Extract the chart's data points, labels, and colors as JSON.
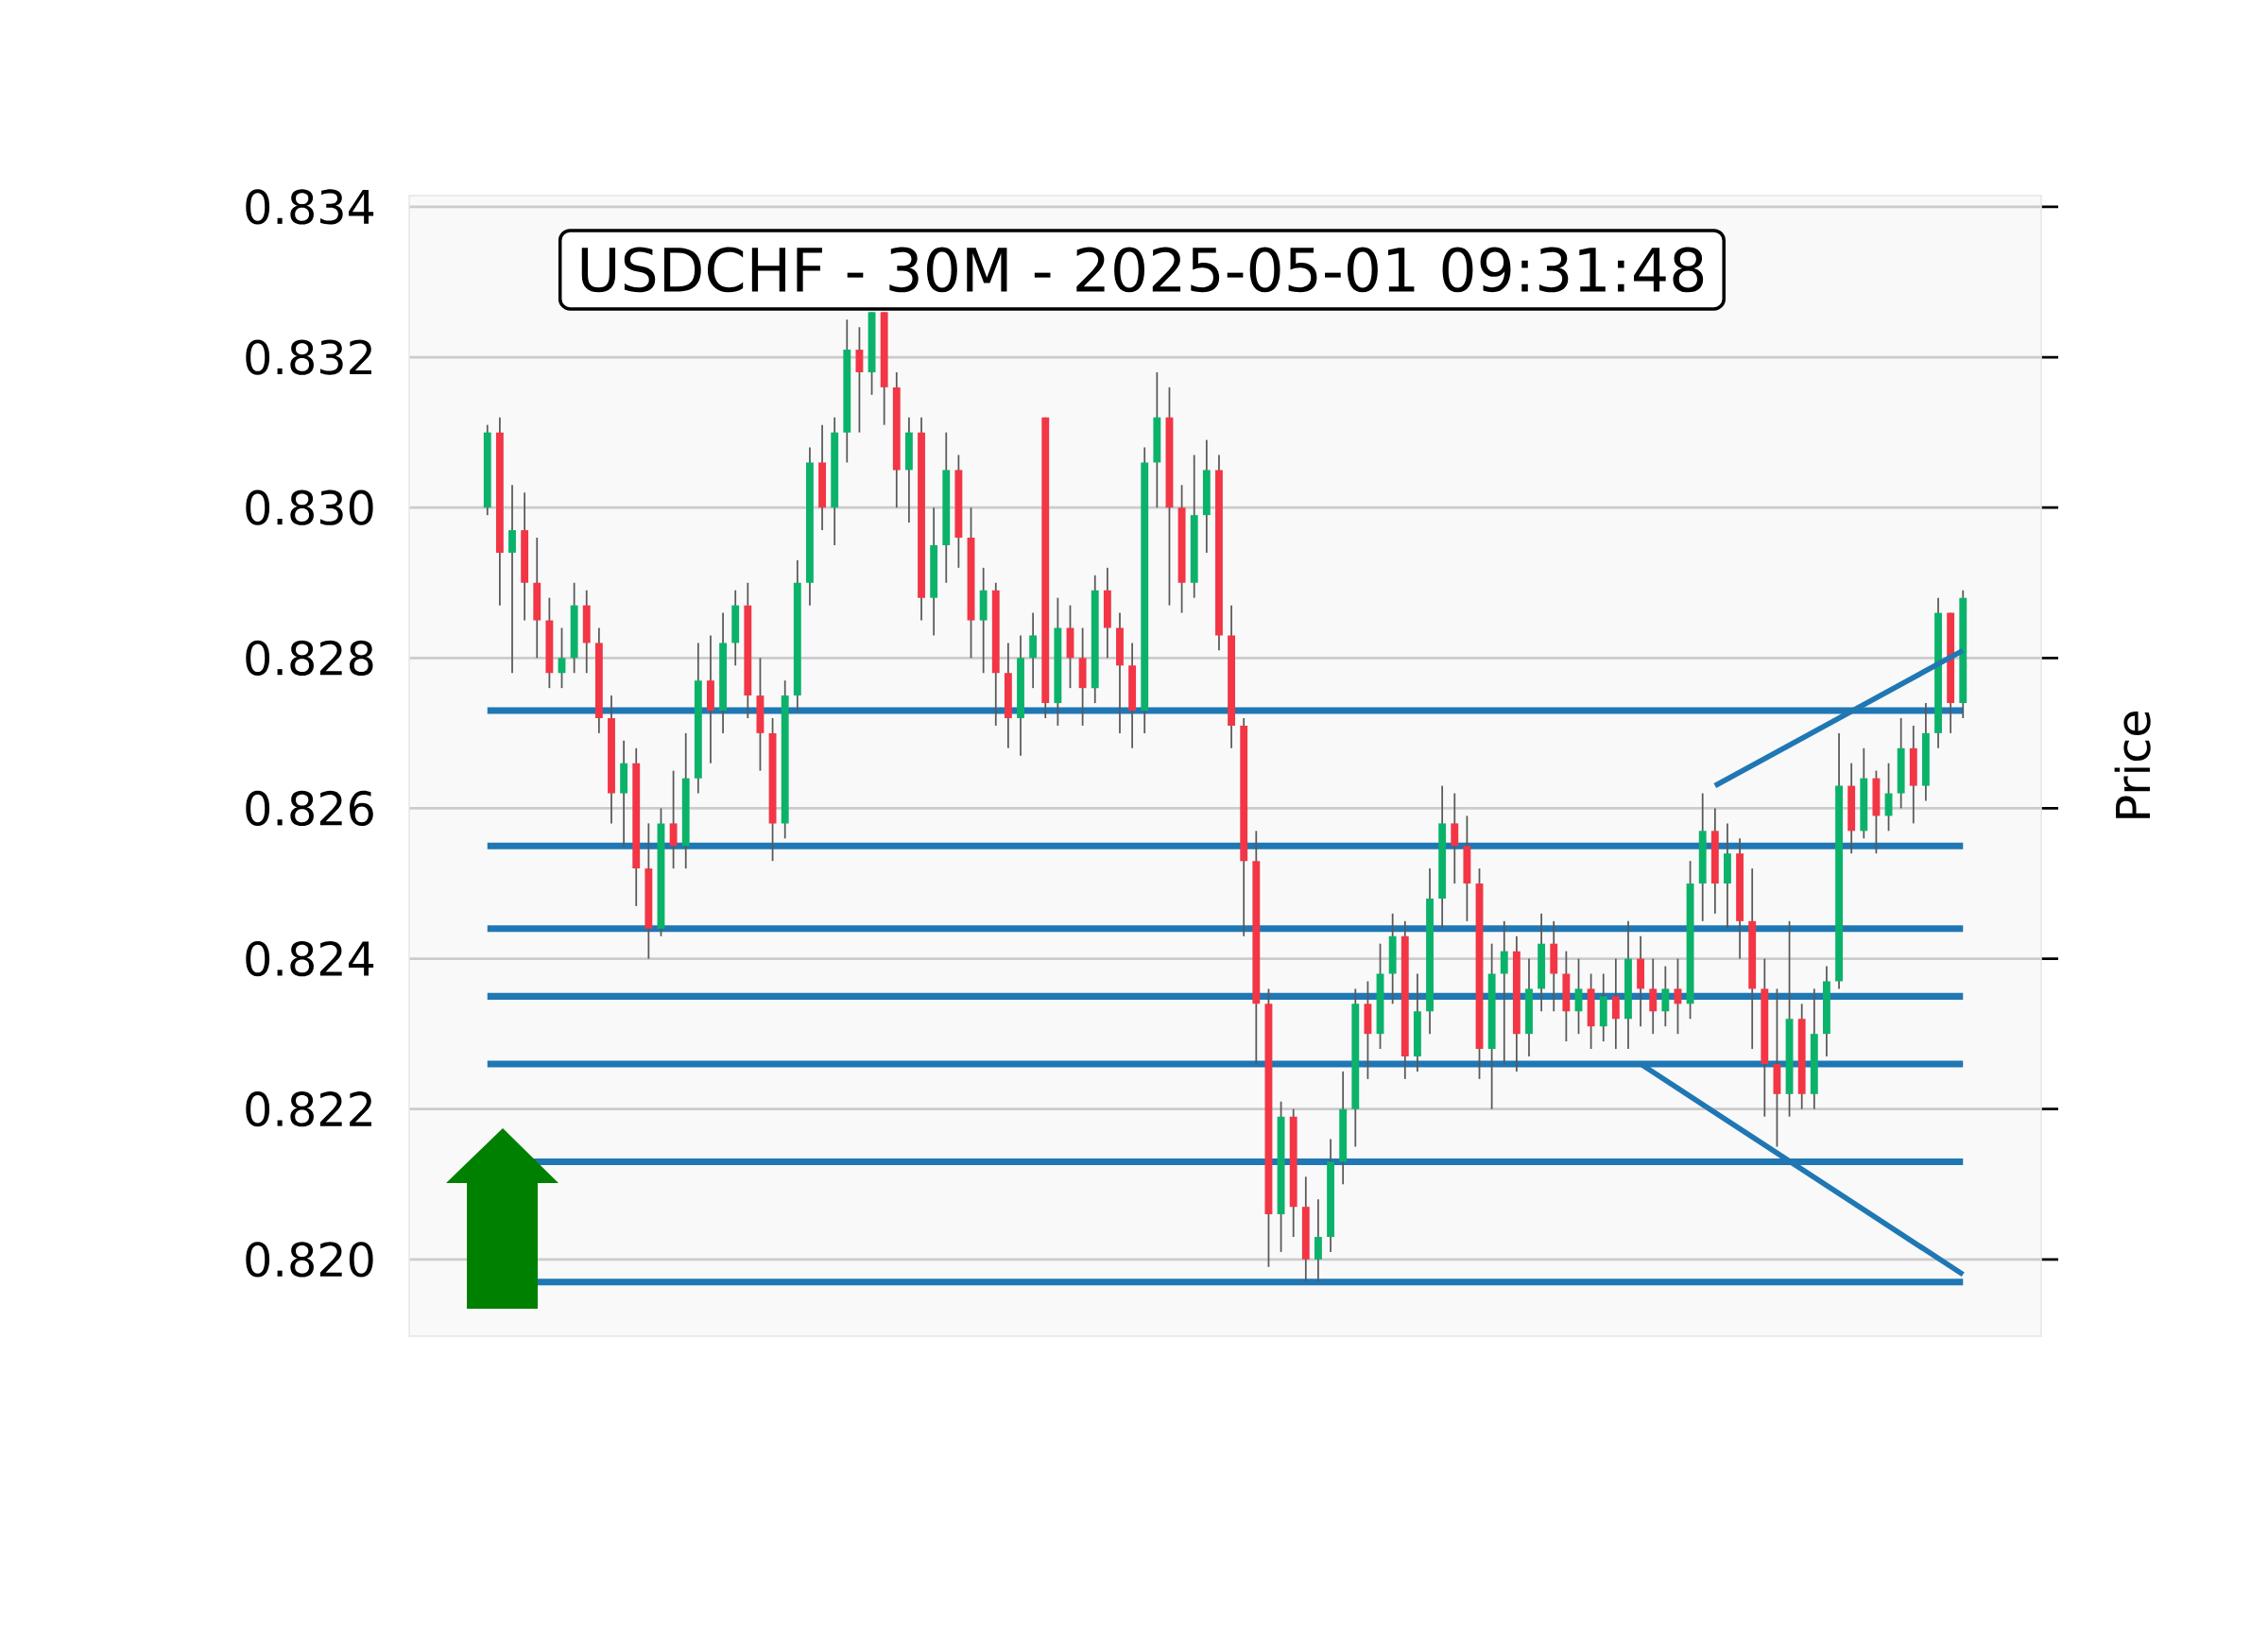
{
  "chart_data": {
    "type": "candlestick",
    "title": "USDCHF - 30M - 2025-05-01 09:31:48",
    "ylabel": "Price",
    "categories": [
      null,
      null,
      null,
      null,
      null,
      null,
      null,
      null,
      null,
      null,
      null,
      null,
      null,
      null,
      null,
      null,
      null,
      null,
      null,
      null,
      null,
      null,
      null,
      null,
      null,
      null,
      null,
      null,
      null,
      null,
      null,
      null,
      null,
      null,
      null,
      null,
      null,
      null,
      null,
      null,
      null,
      null,
      null,
      null,
      null,
      null,
      null,
      null,
      null,
      null,
      null,
      null,
      null,
      null,
      null,
      null,
      null,
      null,
      null,
      null,
      null,
      null,
      null,
      null,
      null,
      null,
      null,
      null,
      null,
      null,
      null,
      null,
      null,
      null,
      null,
      null,
      null,
      null,
      null,
      null,
      null,
      null,
      null,
      null,
      null,
      null,
      null,
      null,
      null,
      null,
      null,
      null,
      null,
      null,
      null,
      null,
      null,
      null,
      null,
      null,
      null,
      null,
      null,
      null,
      null,
      null,
      null,
      null,
      null,
      null,
      null,
      null,
      null,
      null,
      null,
      null,
      null,
      null,
      null,
      null
    ],
    "ohlc": [
      [
        0.83,
        0.8311,
        0.8299,
        0.831
      ],
      [
        0.831,
        0.8312,
        0.8287,
        0.8294
      ],
      [
        0.8294,
        0.8303,
        0.8278,
        0.8297
      ],
      [
        0.8297,
        0.8302,
        0.8285,
        0.829
      ],
      [
        0.829,
        0.8296,
        0.828,
        0.8285
      ],
      [
        0.8285,
        0.8288,
        0.8276,
        0.8278
      ],
      [
        0.8278,
        0.8284,
        0.8276,
        0.828
      ],
      [
        0.828,
        0.829,
        0.8278,
        0.8287
      ],
      [
        0.8287,
        0.8289,
        0.8278,
        0.8282
      ],
      [
        0.8282,
        0.8284,
        0.827,
        0.8272
      ],
      [
        0.8272,
        0.8275,
        0.8258,
        0.8262
      ],
      [
        0.8262,
        0.8269,
        0.8255,
        0.8266
      ],
      [
        0.8266,
        0.8268,
        0.8247,
        0.8252
      ],
      [
        0.8252,
        0.8258,
        0.824,
        0.8244
      ],
      [
        0.8244,
        0.826,
        0.8243,
        0.8258
      ],
      [
        0.8258,
        0.8265,
        0.8252,
        0.8255
      ],
      [
        0.8255,
        0.827,
        0.8252,
        0.8264
      ],
      [
        0.8264,
        0.8282,
        0.8262,
        0.8277
      ],
      [
        0.8277,
        0.8283,
        0.8266,
        0.8273
      ],
      [
        0.8273,
        0.8286,
        0.827,
        0.8282
      ],
      [
        0.8282,
        0.8289,
        0.8279,
        0.8287
      ],
      [
        0.8287,
        0.829,
        0.8272,
        0.8275
      ],
      [
        0.8275,
        0.828,
        0.8265,
        0.827
      ],
      [
        0.827,
        0.8272,
        0.8253,
        0.8258
      ],
      [
        0.8258,
        0.8277,
        0.8256,
        0.8275
      ],
      [
        0.8275,
        0.8293,
        0.8273,
        0.829
      ],
      [
        0.829,
        0.8308,
        0.8287,
        0.8306
      ],
      [
        0.8306,
        0.8311,
        0.8297,
        0.83
      ],
      [
        0.83,
        0.8312,
        0.8295,
        0.831
      ],
      [
        0.831,
        0.8325,
        0.8306,
        0.8321
      ],
      [
        0.8321,
        0.8324,
        0.831,
        0.8318
      ],
      [
        0.8318,
        0.8326,
        0.8315,
        0.8326
      ],
      [
        0.8326,
        0.8326,
        0.8311,
        0.8316
      ],
      [
        0.8316,
        0.8318,
        0.83,
        0.8305
      ],
      [
        0.8305,
        0.8312,
        0.8298,
        0.831
      ],
      [
        0.831,
        0.8312,
        0.8285,
        0.8288
      ],
      [
        0.8288,
        0.83,
        0.8283,
        0.8295
      ],
      [
        0.8295,
        0.831,
        0.829,
        0.8305
      ],
      [
        0.8305,
        0.8307,
        0.8292,
        0.8296
      ],
      [
        0.8296,
        0.83,
        0.828,
        0.8285
      ],
      [
        0.8285,
        0.8292,
        0.8278,
        0.8289
      ],
      [
        0.8289,
        0.829,
        0.8271,
        0.8278
      ],
      [
        0.8278,
        0.8282,
        0.8268,
        0.8272
      ],
      [
        0.8272,
        0.8283,
        0.8267,
        0.828
      ],
      [
        0.828,
        0.8286,
        0.8276,
        0.8283
      ],
      [
        0.8312,
        0.8312,
        0.8272,
        0.8274
      ],
      [
        0.8274,
        0.8288,
        0.8271,
        0.8284
      ],
      [
        0.8284,
        0.8287,
        0.8276,
        0.828
      ],
      [
        0.828,
        0.8284,
        0.8271,
        0.8276
      ],
      [
        0.8276,
        0.8291,
        0.8274,
        0.8289
      ],
      [
        0.8289,
        0.8292,
        0.828,
        0.8284
      ],
      [
        0.8284,
        0.8286,
        0.827,
        0.8279
      ],
      [
        0.8279,
        0.8282,
        0.8268,
        0.8273
      ],
      [
        0.8273,
        0.8308,
        0.827,
        0.8306
      ],
      [
        0.8306,
        0.8318,
        0.83,
        0.8312
      ],
      [
        0.8312,
        0.8316,
        0.8287,
        0.83
      ],
      [
        0.83,
        0.8303,
        0.8286,
        0.829
      ],
      [
        0.829,
        0.8307,
        0.8288,
        0.8299
      ],
      [
        0.8299,
        0.8309,
        0.8294,
        0.8305
      ],
      [
        0.8305,
        0.8307,
        0.8281,
        0.8283
      ],
      [
        0.8283,
        0.8287,
        0.8268,
        0.8271
      ],
      [
        0.8271,
        0.8272,
        0.8243,
        0.8253
      ],
      [
        0.8253,
        0.8257,
        0.8226,
        0.8234
      ],
      [
        0.8234,
        0.8236,
        0.8199,
        0.8206
      ],
      [
        0.8206,
        0.8221,
        0.8201,
        0.8219
      ],
      [
        0.8219,
        0.822,
        0.8203,
        0.8207
      ],
      [
        0.8207,
        0.8211,
        0.8197,
        0.82
      ],
      [
        0.82,
        0.8208,
        0.8197,
        0.8203
      ],
      [
        0.8203,
        0.8216,
        0.8201,
        0.8213
      ],
      [
        0.8213,
        0.8225,
        0.821,
        0.822
      ],
      [
        0.822,
        0.8236,
        0.8215,
        0.8234
      ],
      [
        0.8234,
        0.8237,
        0.8224,
        0.823
      ],
      [
        0.823,
        0.8242,
        0.8228,
        0.8238
      ],
      [
        0.8238,
        0.8246,
        0.8234,
        0.8243
      ],
      [
        0.8243,
        0.8245,
        0.8224,
        0.8227
      ],
      [
        0.8227,
        0.8238,
        0.8225,
        0.8233
      ],
      [
        0.8233,
        0.8252,
        0.823,
        0.8248
      ],
      [
        0.8248,
        0.8263,
        0.8244,
        0.8258
      ],
      [
        0.8258,
        0.8262,
        0.825,
        0.8255
      ],
      [
        0.8255,
        0.8259,
        0.8245,
        0.825
      ],
      [
        0.825,
        0.8252,
        0.8224,
        0.8228
      ],
      [
        0.8228,
        0.8242,
        0.822,
        0.8238
      ],
      [
        0.8238,
        0.8245,
        0.8226,
        0.8241
      ],
      [
        0.8241,
        0.8243,
        0.8225,
        0.823
      ],
      [
        0.823,
        0.824,
        0.8227,
        0.8236
      ],
      [
        0.8236,
        0.8246,
        0.8233,
        0.8242
      ],
      [
        0.8242,
        0.8245,
        0.8233,
        0.8238
      ],
      [
        0.8238,
        0.8241,
        0.8229,
        0.8233
      ],
      [
        0.8233,
        0.824,
        0.823,
        0.8236
      ],
      [
        0.8236,
        0.8238,
        0.8228,
        0.8231
      ],
      [
        0.8231,
        0.8238,
        0.8229,
        0.8235
      ],
      [
        0.8235,
        0.824,
        0.8228,
        0.8232
      ],
      [
        0.8232,
        0.8245,
        0.8228,
        0.824
      ],
      [
        0.824,
        0.8243,
        0.8231,
        0.8236
      ],
      [
        0.8236,
        0.824,
        0.823,
        0.8233
      ],
      [
        0.8233,
        0.8239,
        0.8231,
        0.8236
      ],
      [
        0.8236,
        0.824,
        0.823,
        0.8234
      ],
      [
        0.8234,
        0.8253,
        0.8232,
        0.825
      ],
      [
        0.825,
        0.8262,
        0.8245,
        0.8257
      ],
      [
        0.8257,
        0.826,
        0.8246,
        0.825
      ],
      [
        0.825,
        0.8258,
        0.8244,
        0.8254
      ],
      [
        0.8254,
        0.8256,
        0.824,
        0.8245
      ],
      [
        0.8245,
        0.8252,
        0.8228,
        0.8236
      ],
      [
        0.8236,
        0.824,
        0.8219,
        0.8226
      ],
      [
        0.8226,
        0.8236,
        0.8215,
        0.8222
      ],
      [
        0.8222,
        0.8245,
        0.8219,
        0.8232
      ],
      [
        0.8232,
        0.8234,
        0.822,
        0.8222
      ],
      [
        0.8222,
        0.8236,
        0.822,
        0.823
      ],
      [
        0.823,
        0.8239,
        0.8227,
        0.8237
      ],
      [
        0.8237,
        0.827,
        0.8236,
        0.8263
      ],
      [
        0.8263,
        0.8266,
        0.8254,
        0.8257
      ],
      [
        0.8257,
        0.8268,
        0.8256,
        0.8264
      ],
      [
        0.8264,
        0.8265,
        0.8254,
        0.8259
      ],
      [
        0.8259,
        0.8266,
        0.8257,
        0.8262
      ],
      [
        0.8262,
        0.8272,
        0.826,
        0.8268
      ],
      [
        0.8268,
        0.8271,
        0.8258,
        0.8263
      ],
      [
        0.8263,
        0.8274,
        0.8261,
        0.827
      ],
      [
        0.827,
        0.8288,
        0.8268,
        0.8286
      ],
      [
        0.8286,
        0.8286,
        0.827,
        0.8274
      ],
      [
        0.8274,
        0.8289,
        0.8272,
        0.8288
      ]
    ],
    "series": [
      {
        "type": "line",
        "color": "#1f77b4",
        "values": [
          null,
          null,
          null,
          null,
          null,
          null,
          null,
          null,
          null,
          null,
          null,
          null,
          null,
          null,
          null,
          null,
          null,
          null,
          null,
          null,
          null,
          null,
          null,
          null,
          null,
          null,
          null,
          null,
          null,
          null,
          null,
          null,
          null,
          null,
          null,
          null,
          null,
          null,
          null,
          null,
          null,
          null,
          null,
          null,
          null,
          null,
          null,
          null,
          null,
          null,
          null,
          null,
          null,
          null,
          null,
          null,
          null,
          null,
          null,
          null,
          null,
          null,
          null,
          null,
          null,
          null,
          null,
          null,
          null,
          null,
          null,
          null,
          null,
          null,
          null,
          null,
          null,
          null,
          null,
          null,
          null,
          null,
          null,
          null,
          null,
          null,
          null,
          null,
          null,
          null,
          null,
          null,
          null,
          null,
          null,
          null,
          null,
          null,
          null,
          0.8263,
          null,
          null,
          null,
          null,
          null,
          null,
          null,
          null,
          null,
          null,
          null,
          null,
          null,
          null,
          null,
          null,
          null,
          null,
          null,
          0.8281
        ]
      },
      {
        "type": "line",
        "color": "#1f77b4",
        "values": [
          null,
          null,
          null,
          null,
          null,
          null,
          null,
          null,
          null,
          null,
          null,
          null,
          null,
          null,
          null,
          null,
          null,
          null,
          null,
          null,
          null,
          null,
          null,
          null,
          null,
          null,
          null,
          null,
          null,
          null,
          null,
          null,
          null,
          null,
          null,
          null,
          null,
          null,
          null,
          null,
          null,
          null,
          null,
          null,
          null,
          null,
          null,
          null,
          null,
          null,
          null,
          null,
          null,
          null,
          null,
          null,
          null,
          null,
          null,
          null,
          null,
          null,
          null,
          null,
          null,
          null,
          null,
          null,
          null,
          null,
          null,
          null,
          null,
          null,
          null,
          null,
          null,
          null,
          null,
          null,
          null,
          null,
          null,
          null,
          null,
          null,
          null,
          null,
          null,
          null,
          null,
          null,
          null,
          0.8226,
          null,
          null,
          null,
          null,
          null,
          null,
          null,
          null,
          null,
          null,
          null,
          null,
          null,
          null,
          null,
          null,
          null,
          null,
          null,
          null,
          null,
          null,
          null,
          null,
          null,
          0.8198
        ]
      }
    ],
    "ref_lines": [
      {
        "axis": "y",
        "value": 0.8273,
        "color": "#1f77b4"
      },
      {
        "axis": "y",
        "value": 0.8255,
        "color": "#1f77b4"
      },
      {
        "axis": "y",
        "value": 0.8244,
        "color": "#1f77b4"
      },
      {
        "axis": "y",
        "value": 0.8235,
        "color": "#1f77b4"
      },
      {
        "axis": "y",
        "value": 0.8226,
        "color": "#1f77b4"
      },
      {
        "axis": "y",
        "value": 0.8213,
        "color": "#1f77b4"
      },
      {
        "axis": "y",
        "value": 0.8197,
        "color": "#1f77b4"
      }
    ],
    "ylim": [
      0.81898,
      0.83415
    ],
    "yticks": [
      {
        "value": 0.82,
        "label": "0.820"
      },
      0.822,
      0.824,
      0.826,
      0.828,
      {
        "value": 0.83,
        "label": "0.830"
      },
      0.832,
      0.834
    ],
    "grid": "y",
    "tick_labels": "y"
  }
}
